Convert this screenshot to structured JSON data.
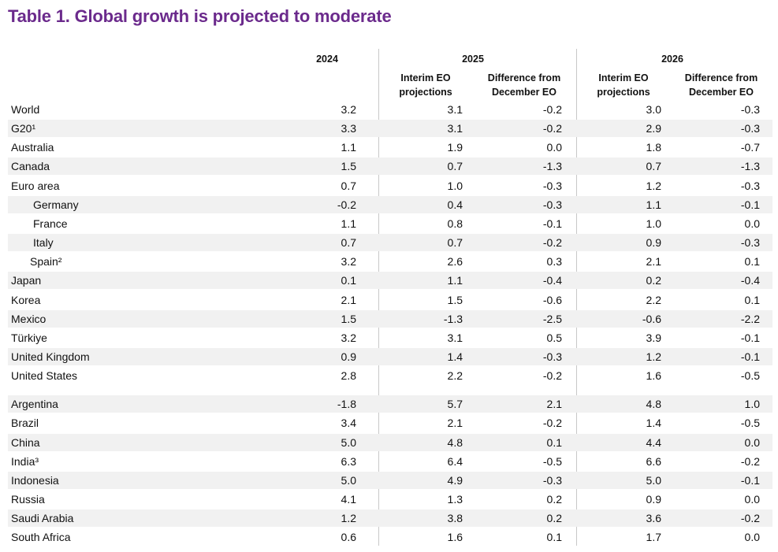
{
  "title": "Table 1. Global growth is projected to moderate",
  "headers": {
    "y2024": "2024",
    "y2025": "2025",
    "y2026": "2026",
    "interim_line1": "Interim EO",
    "interim_line2": "projections",
    "diff_line1": "Difference from",
    "diff_line2": "December EO"
  },
  "rows": [
    {
      "label": "World",
      "v2024": "3.2",
      "p2025": "3.1",
      "d2025": "-0.2",
      "p2026": "3.0",
      "d2026": "-0.3"
    },
    {
      "label": "G20¹",
      "v2024": "3.3",
      "p2025": "3.1",
      "d2025": "-0.2",
      "p2026": "2.9",
      "d2026": "-0.3"
    },
    {
      "label": "Australia",
      "v2024": "1.1",
      "p2025": "1.9",
      "d2025": "0.0",
      "p2026": "1.8",
      "d2026": "-0.7"
    },
    {
      "label": "Canada",
      "v2024": "1.5",
      "p2025": "0.7",
      "d2025": "-1.3",
      "p2026": "0.7",
      "d2026": "-1.3"
    },
    {
      "label": "Euro area",
      "v2024": "0.7",
      "p2025": "1.0",
      "d2025": "-0.3",
      "p2026": "1.2",
      "d2026": "-0.3"
    },
    {
      "label": "Germany",
      "v2024": "-0.2",
      "p2025": "0.4",
      "d2025": "-0.3",
      "p2026": "1.1",
      "d2026": "-0.1"
    },
    {
      "label": "France",
      "v2024": "1.1",
      "p2025": "0.8",
      "d2025": "-0.1",
      "p2026": "1.0",
      "d2026": "0.0"
    },
    {
      "label": "Italy",
      "v2024": "0.7",
      "p2025": "0.7",
      "d2025": "-0.2",
      "p2026": "0.9",
      "d2026": "-0.3"
    },
    {
      "label": "Spain²",
      "v2024": "3.2",
      "p2025": "2.6",
      "d2025": "0.3",
      "p2026": "2.1",
      "d2026": "0.1"
    },
    {
      "label": "Japan",
      "v2024": "0.1",
      "p2025": "1.1",
      "d2025": "-0.4",
      "p2026": "0.2",
      "d2026": "-0.4"
    },
    {
      "label": "Korea",
      "v2024": "2.1",
      "p2025": "1.5",
      "d2025": "-0.6",
      "p2026": "2.2",
      "d2026": "0.1"
    },
    {
      "label": "Mexico",
      "v2024": "1.5",
      "p2025": "-1.3",
      "d2025": "-2.5",
      "p2026": "-0.6",
      "d2026": "-2.2"
    },
    {
      "label": "Türkiye",
      "v2024": "3.2",
      "p2025": "3.1",
      "d2025": "0.5",
      "p2026": "3.9",
      "d2026": "-0.1"
    },
    {
      "label": "United Kingdom",
      "v2024": "0.9",
      "p2025": "1.4",
      "d2025": "-0.3",
      "p2026": "1.2",
      "d2026": "-0.1"
    },
    {
      "label": "United States",
      "v2024": "2.8",
      "p2025": "2.2",
      "d2025": "-0.2",
      "p2026": "1.6",
      "d2026": "-0.5"
    },
    {
      "label": "Argentina",
      "v2024": "-1.8",
      "p2025": "5.7",
      "d2025": "2.1",
      "p2026": "4.8",
      "d2026": "1.0"
    },
    {
      "label": "Brazil",
      "v2024": "3.4",
      "p2025": "2.1",
      "d2025": "-0.2",
      "p2026": "1.4",
      "d2026": "-0.5"
    },
    {
      "label": "China",
      "v2024": "5.0",
      "p2025": "4.8",
      "d2025": "0.1",
      "p2026": "4.4",
      "d2026": "0.0"
    },
    {
      "label": "India³",
      "v2024": "6.3",
      "p2025": "6.4",
      "d2025": "-0.5",
      "p2026": "6.6",
      "d2026": "-0.2"
    },
    {
      "label": "Indonesia",
      "v2024": "5.0",
      "p2025": "4.9",
      "d2025": "-0.3",
      "p2026": "5.0",
      "d2026": "-0.1"
    },
    {
      "label": "Russia",
      "v2024": "4.1",
      "p2025": "1.3",
      "d2025": "0.2",
      "p2026": "0.9",
      "d2026": "0.0"
    },
    {
      "label": "Saudi Arabia",
      "v2024": "1.2",
      "p2025": "3.8",
      "d2025": "0.2",
      "p2026": "3.6",
      "d2026": "-0.2"
    },
    {
      "label": "South Africa",
      "v2024": "0.6",
      "p2025": "1.6",
      "d2025": "0.1",
      "p2026": "1.7",
      "d2026": "0.0"
    }
  ]
}
